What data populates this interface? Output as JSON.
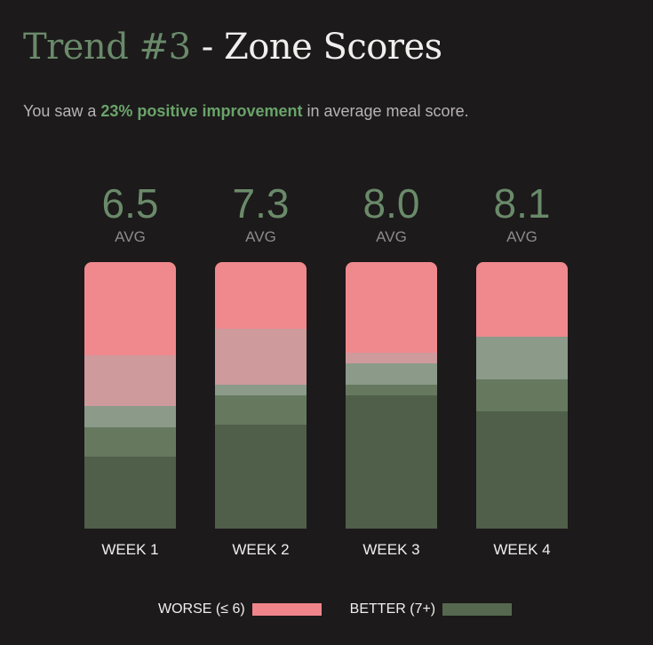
{
  "title": {
    "accent": "Trend #3",
    "rest": "- Zone Scores"
  },
  "subtitle": {
    "prefix": "You saw a ",
    "highlight": "23% positive improvement",
    "suffix": " in average meal score."
  },
  "colors": {
    "background": "#1c1a1b",
    "worse": "#ef858a",
    "better": "#56684f",
    "accent_green": "#6a8a6a",
    "segment_shades": [
      "#ef898d",
      "#cf9a9c",
      "#8b9a89",
      "#66795f",
      "#4f5f49"
    ]
  },
  "legend": {
    "worse_label": "WORSE (≤ 6)",
    "better_label": "BETTER (7+)"
  },
  "chart_data": {
    "type": "bar",
    "stacked": true,
    "categories": [
      "WEEK 1",
      "WEEK 2",
      "WEEK 3",
      "WEEK 4"
    ],
    "averages": [
      "6.5",
      "7.3",
      "8.0",
      "8.1"
    ],
    "avg_label": "AVG",
    "unit": "percent of meals",
    "series": [
      {
        "name": "WORSE (≤ 6)",
        "shade": 0,
        "values": [
          35,
          25,
          34,
          28
        ]
      },
      {
        "shade": 1,
        "values": [
          19,
          21,
          4,
          0
        ]
      },
      {
        "shade": 2,
        "values": [
          8,
          4,
          8,
          16
        ]
      },
      {
        "shade": 3,
        "values": [
          11,
          11,
          4,
          12
        ]
      },
      {
        "name": "BETTER (7+)",
        "shade": 4,
        "values": [
          27,
          39,
          50,
          44
        ]
      }
    ],
    "ylim": [
      0,
      100
    ]
  }
}
